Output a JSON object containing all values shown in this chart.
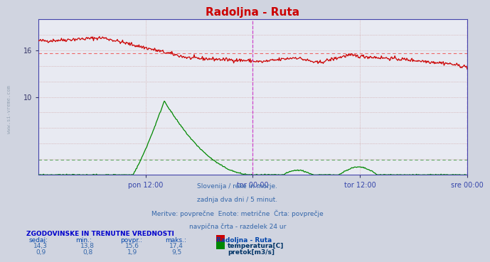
{
  "title": "Radoljna - Ruta",
  "title_color": "#cc0000",
  "bg_color": "#d0d4e0",
  "plot_bg_color": "#e8eaf2",
  "x_tick_labels": [
    "pon 12:00",
    "tor 00:00",
    "tor 12:00",
    "sre 00:00"
  ],
  "x_tick_positions": [
    0.25,
    0.5,
    0.75,
    1.0
  ],
  "ylim": [
    0,
    20
  ],
  "y_ticks": [
    10,
    16
  ],
  "temp_avg": 15.6,
  "flow_avg": 1.9,
  "temp_color": "#cc0000",
  "flow_color": "#008800",
  "avg_line_temp_color": "#ee6666",
  "avg_line_flow_color": "#66aa66",
  "vline_color": "#cc44cc",
  "footer_text": "Slovenija / reke in morje.\nzadnja dva dni / 5 minut.\nMeritve: povprečne  Enote: metrične  Črta: povprečje\nnavpična črta - razdelek 24 ur",
  "table_header": "ZGODOVINSKE IN TRENUTNE VREDNOSTI",
  "col_headers": [
    "sedaj:",
    "min.:",
    "povpr.:",
    "maks.:",
    "Radoljna - Ruta"
  ],
  "temp_row": [
    "14,3",
    "13,8",
    "15,6",
    "17,4",
    "temperatura[C]"
  ],
  "flow_row": [
    "0,9",
    "0,8",
    "1,9",
    "9,5",
    "pretok[m3/s]"
  ],
  "watermark": "www.si-vreme.com"
}
